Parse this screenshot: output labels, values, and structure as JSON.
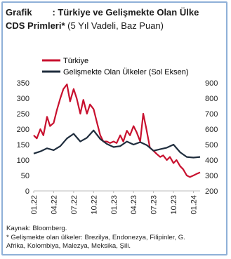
{
  "title": {
    "label": "Grafik",
    "text": ": Türkiye ve Gelişmekte Olan Ülke",
    "line2_bold": "CDS Primleri*",
    "line2_sub": "(5 Yıl Vadeli, Baz Puan)"
  },
  "footnotes": {
    "source": "Kaynak: Bloomberg.",
    "note1": "* Gelişmekte olan ülkeler: Brezilya, Endonezya, Filipinler, G.",
    "note2": "Afrika, Kolombiya, Malezya, Meksika, Şili."
  },
  "colors": {
    "turkiye": "#c8102e",
    "em": "#1f2d3d",
    "frame": "#8fb0d8"
  },
  "chart_data": {
    "type": "line",
    "x_ticks": [
      "01.22",
      "04.22",
      "07.22",
      "10.22",
      "01.23",
      "04.23",
      "07.23",
      "10.23",
      "01.24"
    ],
    "x_range": [
      "2022-01",
      "2024-02"
    ],
    "y_left": {
      "ticks": [
        "0",
        "50",
        "100",
        "150",
        "200",
        "250",
        "300",
        "350"
      ],
      "lim": [
        0,
        350
      ]
    },
    "y_right": {
      "ticks": [
        "200",
        "300",
        "400",
        "500",
        "600",
        "700",
        "800",
        "900"
      ],
      "lim": [
        200,
        900
      ]
    },
    "legend_position": "top-left",
    "series": [
      {
        "name": "Türkiye",
        "axis": "right",
        "points": [
          [
            "2022-01-01",
            560
          ],
          [
            "2022-01-15",
            540
          ],
          [
            "2022-02-01",
            600
          ],
          [
            "2022-02-15",
            560
          ],
          [
            "2022-03-01",
            680
          ],
          [
            "2022-03-15",
            620
          ],
          [
            "2022-04-01",
            640
          ],
          [
            "2022-04-15",
            720
          ],
          [
            "2022-05-01",
            800
          ],
          [
            "2022-05-15",
            860
          ],
          [
            "2022-06-01",
            890
          ],
          [
            "2022-06-15",
            780
          ],
          [
            "2022-07-01",
            860
          ],
          [
            "2022-07-15",
            800
          ],
          [
            "2022-08-01",
            700
          ],
          [
            "2022-08-15",
            790
          ],
          [
            "2022-09-01",
            700
          ],
          [
            "2022-09-15",
            760
          ],
          [
            "2022-10-01",
            730
          ],
          [
            "2022-10-15",
            650
          ],
          [
            "2022-11-01",
            560
          ],
          [
            "2022-11-15",
            520
          ],
          [
            "2022-12-01",
            520
          ],
          [
            "2022-12-15",
            510
          ],
          [
            "2023-01-01",
            520
          ],
          [
            "2023-01-15",
            510
          ],
          [
            "2023-02-01",
            560
          ],
          [
            "2023-02-15",
            520
          ],
          [
            "2023-03-01",
            590
          ],
          [
            "2023-03-15",
            560
          ],
          [
            "2023-04-01",
            620
          ],
          [
            "2023-04-15",
            580
          ],
          [
            "2023-05-01",
            520
          ],
          [
            "2023-05-15",
            700
          ],
          [
            "2023-05-28",
            610
          ],
          [
            "2023-06-15",
            480
          ],
          [
            "2023-07-01",
            460
          ],
          [
            "2023-07-15",
            440
          ],
          [
            "2023-08-01",
            420
          ],
          [
            "2023-08-15",
            430
          ],
          [
            "2023-09-01",
            400
          ],
          [
            "2023-09-15",
            420
          ],
          [
            "2023-10-01",
            380
          ],
          [
            "2023-10-15",
            400
          ],
          [
            "2023-11-01",
            360
          ],
          [
            "2023-11-15",
            340
          ],
          [
            "2023-12-01",
            300
          ],
          [
            "2023-12-15",
            290
          ],
          [
            "2024-01-01",
            300
          ],
          [
            "2024-01-15",
            310
          ],
          [
            "2024-02-01",
            320
          ]
        ]
      },
      {
        "name": "Gelişmekte Olan Ülkeler (Sol Eksen)",
        "axis": "left",
        "points": [
          [
            "2022-01-01",
            121
          ],
          [
            "2022-02-01",
            128
          ],
          [
            "2022-03-01",
            138
          ],
          [
            "2022-04-01",
            132
          ],
          [
            "2022-05-01",
            145
          ],
          [
            "2022-06-01",
            170
          ],
          [
            "2022-07-01",
            185
          ],
          [
            "2022-08-01",
            160
          ],
          [
            "2022-09-01",
            172
          ],
          [
            "2022-10-01",
            196
          ],
          [
            "2022-11-01",
            168
          ],
          [
            "2022-12-01",
            152
          ],
          [
            "2023-01-01",
            142
          ],
          [
            "2023-02-01",
            145
          ],
          [
            "2023-03-01",
            160
          ],
          [
            "2023-04-01",
            150
          ],
          [
            "2023-05-01",
            158
          ],
          [
            "2023-06-01",
            148
          ],
          [
            "2023-07-01",
            130
          ],
          [
            "2023-08-01",
            135
          ],
          [
            "2023-09-01",
            140
          ],
          [
            "2023-10-01",
            150
          ],
          [
            "2023-11-01",
            125
          ],
          [
            "2023-12-01",
            110
          ],
          [
            "2024-01-01",
            108
          ],
          [
            "2024-02-01",
            110
          ]
        ]
      }
    ]
  }
}
